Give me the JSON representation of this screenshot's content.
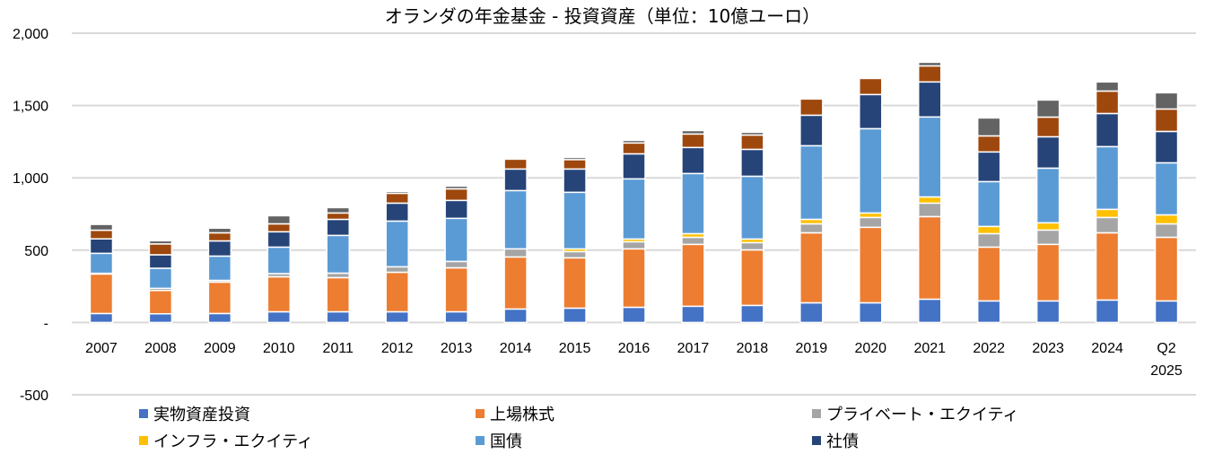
{
  "chart_data": {
    "type": "bar",
    "stacked": true,
    "title": "オランダの年金基金 - 投資資産（単位：10億ユーロ）",
    "xlabel": "",
    "ylabel": "",
    "ylim": [
      -500,
      2000
    ],
    "yticks": [
      2000,
      1500,
      1000,
      500,
      0,
      -500
    ],
    "ytick_labels": [
      "2,000",
      "1,500",
      "1,000",
      "500",
      "-",
      "-500"
    ],
    "grid": true,
    "legend_position": "bottom",
    "categories": [
      "2007",
      "2008",
      "2009",
      "2010",
      "2011",
      "2012",
      "2013",
      "2014",
      "2015",
      "2016",
      "2017",
      "2018",
      "2019",
      "2020",
      "2021",
      "2022",
      "2023",
      "2024",
      "Q2 2025"
    ],
    "category_lines": [
      [
        "2007"
      ],
      [
        "2008"
      ],
      [
        "2009"
      ],
      [
        "2010"
      ],
      [
        "2011"
      ],
      [
        "2012"
      ],
      [
        "2013"
      ],
      [
        "2014"
      ],
      [
        "2015"
      ],
      [
        "2016"
      ],
      [
        "2017"
      ],
      [
        "2018"
      ],
      [
        "2019"
      ],
      [
        "2020"
      ],
      [
        "2021"
      ],
      [
        "2022"
      ],
      [
        "2023"
      ],
      [
        "2024"
      ],
      [
        "Q2",
        "2025"
      ]
    ],
    "series": [
      {
        "name": "実物資産投資",
        "color": "#4472C4",
        "in_legend": true,
        "values": [
          62,
          60,
          62,
          74,
          74,
          74,
          74,
          93,
          99,
          105,
          112,
          118,
          136,
          136,
          161,
          149,
          149,
          155,
          149
        ]
      },
      {
        "name": "上場株式",
        "color": "#ED7D31",
        "in_legend": true,
        "values": [
          273,
          161,
          217,
          242,
          236,
          273,
          304,
          360,
          348,
          404,
          428,
          384,
          484,
          522,
          571,
          372,
          391,
          465,
          440
        ]
      },
      {
        "name": "プライベート・エクイティ",
        "color": "#A5A5A5",
        "in_legend": true,
        "values": [
          5,
          15,
          12,
          22,
          31,
          38,
          44,
          56,
          43,
          49,
          49,
          50,
          62,
          68,
          93,
          93,
          99,
          106,
          93
        ]
      },
      {
        "name": "インフラ・エクイティ",
        "color": "#FFC000",
        "in_legend": true,
        "values": [
          0,
          0,
          0,
          0,
          0,
          0,
          0,
          0,
          19,
          19,
          25,
          25,
          31,
          31,
          43,
          50,
          50,
          56,
          62
        ]
      },
      {
        "name": "国債",
        "color": "#5B9BD5",
        "in_legend": true,
        "values": [
          138,
          139,
          168,
          183,
          261,
          316,
          298,
          403,
          391,
          416,
          416,
          434,
          509,
          583,
          553,
          310,
          378,
          434,
          360
        ]
      },
      {
        "name": "社債",
        "color": "#264478",
        "in_legend": true,
        "values": [
          100,
          93,
          105,
          106,
          111,
          124,
          124,
          149,
          161,
          173,
          180,
          186,
          211,
          236,
          242,
          205,
          217,
          229,
          217
        ]
      },
      {
        "name": "",
        "color": "#9E480E",
        "in_legend": false,
        "values": [
          60,
          75,
          56,
          55,
          44,
          68,
          80,
          68,
          65,
          75,
          93,
          99,
          112,
          111,
          111,
          111,
          136,
          155,
          155
        ]
      },
      {
        "name": "",
        "color": "#636363",
        "in_legend": false,
        "values": [
          40,
          22,
          32,
          56,
          37,
          13,
          19,
          0,
          15,
          18,
          24,
          19,
          0,
          0,
          25,
          124,
          118,
          63,
          112
        ]
      }
    ]
  },
  "colors": {
    "gridline": "#D9D9D9",
    "segment_border": "#FFFFFF"
  }
}
